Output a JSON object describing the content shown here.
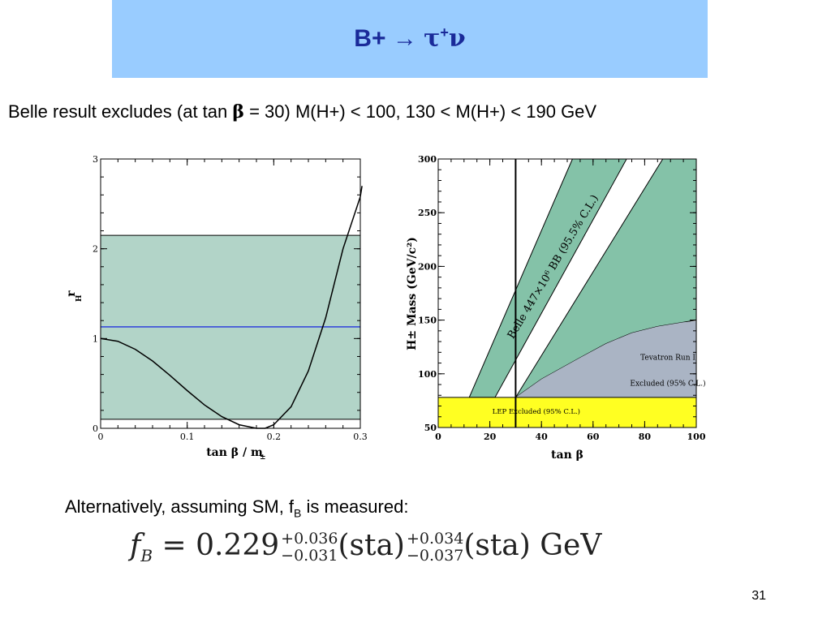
{
  "header": {
    "title_plain": "B+ → ",
    "title_tau": "τ",
    "title_sup": "+",
    "title_nu": "ν"
  },
  "intro": {
    "pre": "Belle result excludes (at tan ",
    "beta": "β",
    "post": " = 30) M(H+) < 100, 130 < M(H+) < 190 GeV"
  },
  "alt": {
    "pre": "Alternatively, assuming SM,  f",
    "sub": "B",
    "post": " is measured:"
  },
  "formula": {
    "lhs": "f",
    "lhs_sub": "B",
    "eq": " = 0.229",
    "err1_up": "+0.036",
    "err1_dn": "−0.031",
    "sta1": "(sta)",
    "err2_up": "+0.034",
    "err2_dn": "−0.037",
    "sta2": "(sta)",
    "unit": "GeV"
  },
  "page_number": "31",
  "chart_data": [
    {
      "type": "line",
      "xlim": [
        0,
        0.3
      ],
      "ylim": [
        0,
        3
      ],
      "xticks": [
        "0",
        "0.1",
        "0.2",
        "0.3"
      ],
      "yticks": [
        "0",
        "1",
        "2",
        "3"
      ],
      "xlabel": "tan β / m",
      "xlabel_sub": "±",
      "ylabel": "r",
      "ylabel_sub": "H",
      "band": [
        0.1,
        2.15
      ],
      "hline": 1.13,
      "colors": {
        "band": "#b2d4c8",
        "hline": "#2233dd",
        "curve": "#000000"
      },
      "series": [
        {
          "x": [
            0,
            0.02,
            0.04,
            0.06,
            0.08,
            0.1,
            0.12,
            0.14,
            0.16,
            0.18,
            0.19,
            0.2,
            0.22,
            0.24,
            0.26,
            0.28,
            0.3,
            0.302
          ],
          "y": [
            1.0,
            0.97,
            0.88,
            0.75,
            0.59,
            0.42,
            0.26,
            0.13,
            0.04,
            0.0,
            0.0,
            0.04,
            0.24,
            0.64,
            1.23,
            2.0,
            2.58,
            2.7
          ]
        }
      ]
    },
    {
      "type": "area",
      "xlim": [
        0,
        100
      ],
      "ylim": [
        50,
        300
      ],
      "xticks": [
        "0",
        "20",
        "40",
        "60",
        "80",
        "100"
      ],
      "yticks": [
        "50",
        "100",
        "150",
        "200",
        "250",
        "300"
      ],
      "xlabel": "tan β",
      "ylabel": "H± Mass (GeV/c²)",
      "vline": 30,
      "colors": {
        "excluded": "#84c2a8",
        "lep": "#ffff22",
        "tevatron": "#aab4c4"
      },
      "annotations": {
        "belle_band": "Belle 447×10⁶ BB (95.5% C.L.)",
        "tevatron_line1": "Tevatron Run I",
        "tevatron_line2": "Excluded (95% C.L.)",
        "lep": "LEP Excluded (95% C.L.)"
      },
      "lep_excluded_below": 78,
      "excluded_band_low": {
        "x": [
          12,
          74
        ],
        "y": [
          78,
          300
        ]
      },
      "excluded_band_high": {
        "x": [
          22,
          86
        ],
        "y": [
          78,
          300
        ]
      },
      "excluded_band_right_edge": {
        "x": [
          30,
          100
        ],
        "y": [
          50,
          300
        ]
      },
      "tevatron": {
        "x": [
          30,
          40,
          55,
          65,
          75,
          85,
          95,
          100
        ],
        "y": [
          78,
          95,
          115,
          128,
          138,
          144,
          148,
          149
        ]
      }
    }
  ]
}
